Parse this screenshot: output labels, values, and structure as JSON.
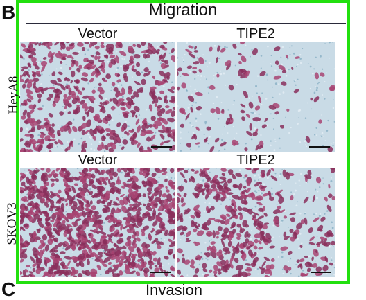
{
  "panel_letters": {
    "top": "B",
    "bottom": "C"
  },
  "figure": {
    "title": "Migration",
    "columns": [
      "Vector",
      "TIPE2"
    ],
    "rows": [
      "HeyA8",
      "SKOV3"
    ],
    "row_column_labels": {
      "second_row": [
        "Vector",
        "TIPE2"
      ]
    },
    "next_panel_title": "Invasion"
  },
  "colors": {
    "frame": "#22e00f",
    "background_blue": "#c9dbe6",
    "cell_purple": "#8a2f5c",
    "cell_magenta": "#a84472"
  }
}
